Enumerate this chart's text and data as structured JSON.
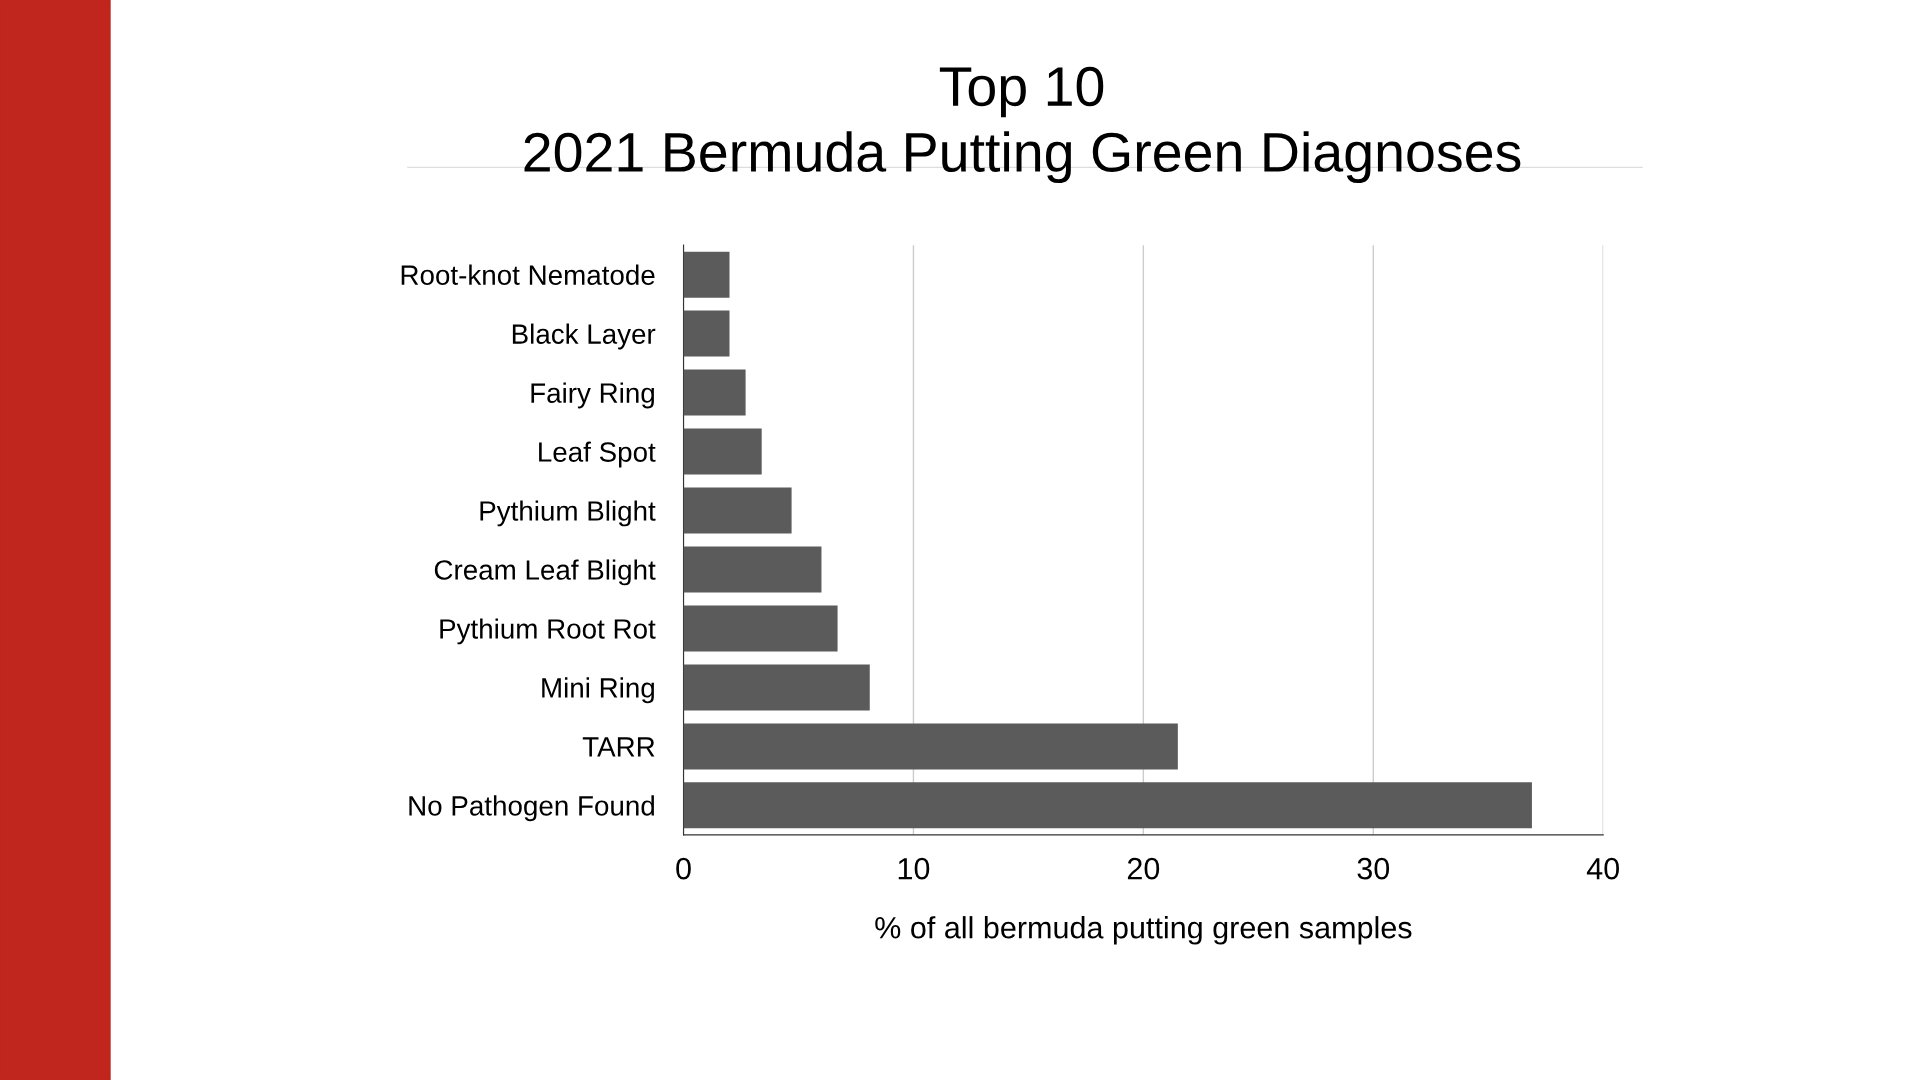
{
  "chart_data": {
    "type": "bar",
    "orientation": "horizontal",
    "title": "Top 10\n2021 Bermuda Putting Green Diagnoses",
    "categories": [
      "Root-knot Nematode",
      "Black Layer",
      "Fairy Ring",
      "Leaf Spot",
      "Pythium Blight",
      "Cream Leaf Blight",
      "Pythium Root Rot",
      "Mini Ring",
      "TARR",
      "No Pathogen Found"
    ],
    "values": [
      2.0,
      2.0,
      2.7,
      3.4,
      4.7,
      6.0,
      6.7,
      8.1,
      21.5,
      36.9
    ],
    "color": "#5b5b5c",
    "xlabel": "% of all bermuda putting green samples",
    "xlim": [
      0,
      40
    ],
    "xticks": [
      0,
      10,
      20,
      30,
      40
    ],
    "grid": "x"
  }
}
